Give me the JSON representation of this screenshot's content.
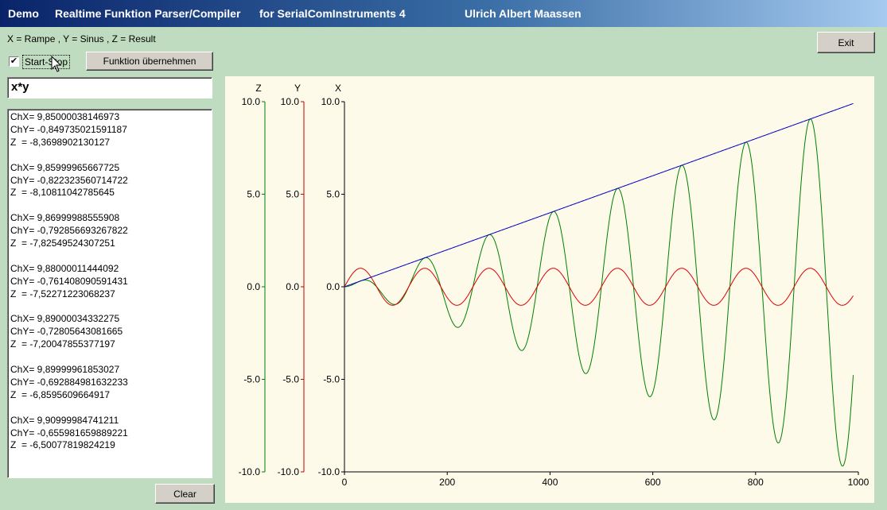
{
  "window": {
    "title_parts": [
      "Demo",
      "Realtime Funktion Parser/Compiler",
      "for SerialComInstruments 4",
      "Ulrich Albert Maassen"
    ]
  },
  "legend_text": "X = Rampe  , Y = Sinus , Z = Result",
  "buttons": {
    "exit": "Exit",
    "apply": "Funktion übernehmen",
    "clear": "Clear"
  },
  "checkbox": {
    "label": "Start-Stop",
    "checked": true,
    "mark": "✔"
  },
  "formula": "x*y",
  "log_entries": [
    [
      "ChX= 9,85000038146973",
      "ChY= -0,849735021591187",
      "Z  = -8,3698902130127"
    ],
    [
      "ChX= 9,85999965667725",
      "ChY= -0,822323560714722",
      "Z  = -8,10811042785645"
    ],
    [
      "ChX= 9,86999988555908",
      "ChY= -0,792856693267822",
      "Z  = -7,82549524307251"
    ],
    [
      "ChX= 9,88000011444092",
      "ChY= -0,761408090591431",
      "Z  = -7,52271223068237"
    ],
    [
      "ChX= 9,89000034332275",
      "ChY= -0,72805643081665",
      "Z  = -7,20047855377197"
    ],
    [
      "ChX= 9,89999961853027",
      "ChY= -0,692884981632233",
      "Z  = -6,8595609664917"
    ],
    [
      "ChX= 9,90999984741211",
      "ChY= -0,655981659889221",
      "Z  = -6,50077819824219"
    ]
  ],
  "colors": {
    "x_axis": "#000000",
    "y_axis": "#c00000",
    "z_axis": "#008000",
    "ramp_series": "#0000c0",
    "sine_series": "#e00000",
    "result_series": "#008000"
  },
  "chart_data": {
    "type": "line",
    "axes": [
      {
        "name": "Z",
        "ylim": [
          -10,
          10
        ],
        "ticks": [
          "10.0",
          "5.0",
          "0.0",
          "-5.0",
          "-10.0"
        ]
      },
      {
        "name": "Y",
        "ylim": [
          -10,
          10
        ],
        "ticks": [
          "10.0",
          "5.0",
          "0.0",
          "-5.0",
          "-10.0"
        ]
      },
      {
        "name": "X",
        "ylim": [
          -10,
          10
        ],
        "ticks": [
          "10.0",
          "5.0",
          "0.0",
          "-5.0",
          "-10.0"
        ]
      }
    ],
    "xlim": [
      0,
      1000
    ],
    "x_ticks": [
      "0",
      "200",
      "400",
      "600",
      "800",
      "1000"
    ],
    "samples": 990,
    "ramp_end": 9.9,
    "sine_period": 125,
    "series": [
      {
        "name": "X",
        "formula": "ramp"
      },
      {
        "name": "Y",
        "formula": "sine"
      },
      {
        "name": "Z",
        "formula": "x*y"
      }
    ]
  }
}
